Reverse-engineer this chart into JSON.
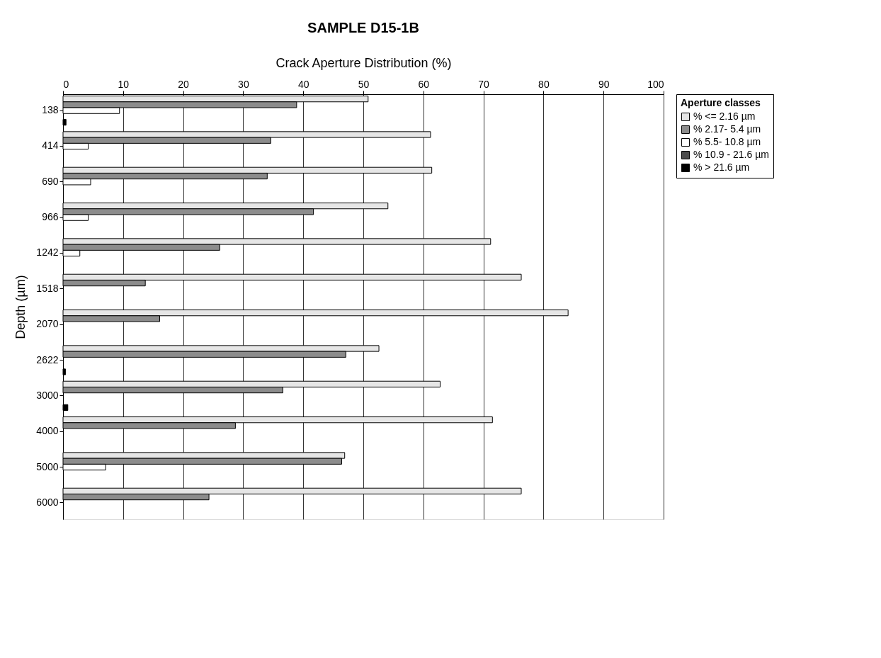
{
  "chart_data": {
    "type": "bar",
    "orientation": "horizontal",
    "title": "SAMPLE D15-1B",
    "xlabel": "Crack Aperture Distribution (%)",
    "ylabel": "Depth  (µm)",
    "legend_title": "Aperture classes",
    "categories": [
      "138",
      "414",
      "690",
      "966",
      "1242",
      "1518",
      "2070",
      "2622",
      "3000",
      "4000",
      "5000",
      "6000"
    ],
    "series": [
      {
        "name": "% <= 2.16 µm",
        "color": "#e6e6e6",
        "values": [
          50.8,
          61.2,
          61.4,
          54.1,
          71.2,
          76.3,
          84.1,
          52.6,
          62.8,
          71.5,
          46.9,
          76.3
        ]
      },
      {
        "name": "% 2.17- 5.4 µm",
        "color": "#8c8c8c",
        "values": [
          38.9,
          34.6,
          34.0,
          41.7,
          26.1,
          13.7,
          16.1,
          47.1,
          36.6,
          28.7,
          46.4,
          24.3
        ]
      },
      {
        "name": "% 5.5- 10.8 µm",
        "color": "#ffffff",
        "values": [
          9.4,
          4.2,
          4.6,
          4.2,
          2.8,
          null,
          null,
          null,
          null,
          null,
          7.1,
          null
        ]
      },
      {
        "name": "% 10.9 - 21.6 µm",
        "color": "#4d4d4d",
        "values": [
          null,
          null,
          null,
          null,
          null,
          null,
          null,
          null,
          null,
          null,
          null,
          null
        ]
      },
      {
        "name": "% > 21.6 µm",
        "color": "#000000",
        "values": [
          0.5,
          null,
          null,
          null,
          null,
          null,
          null,
          0.4,
          0.8,
          null,
          null,
          null
        ]
      }
    ],
    "xlim": [
      0,
      100
    ],
    "xticks": [
      0,
      10,
      20,
      30,
      40,
      50,
      60,
      70,
      80,
      90,
      100
    ],
    "grid": "x",
    "legend": "right"
  }
}
